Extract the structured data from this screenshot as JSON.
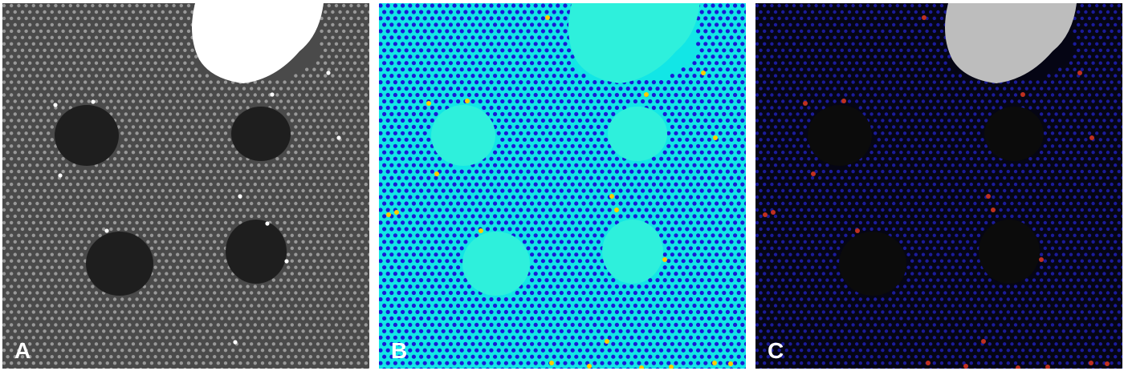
{
  "figure": {
    "panels": [
      {
        "id": "a",
        "label": "A",
        "style": "grayscale micrograph",
        "background": "#4a4a4a",
        "dots": "#d8d8d8",
        "void": "#1e1e1e",
        "bright_region": "#ffffff"
      },
      {
        "id": "b",
        "label": "B",
        "style": "color-mapped lattice",
        "background": "#12e6e6",
        "dots": "#1a1ad6",
        "void": "#2ef0dc",
        "defect_sites": "#ffcc00"
      },
      {
        "id": "c",
        "label": "C",
        "style": "overlay of lattice positions",
        "background": "#050514",
        "dots": "#1e1ea8",
        "void": "#0b0b0b",
        "defect_sites": "#c03020",
        "bright_region": "#bdbdbd"
      }
    ]
  }
}
